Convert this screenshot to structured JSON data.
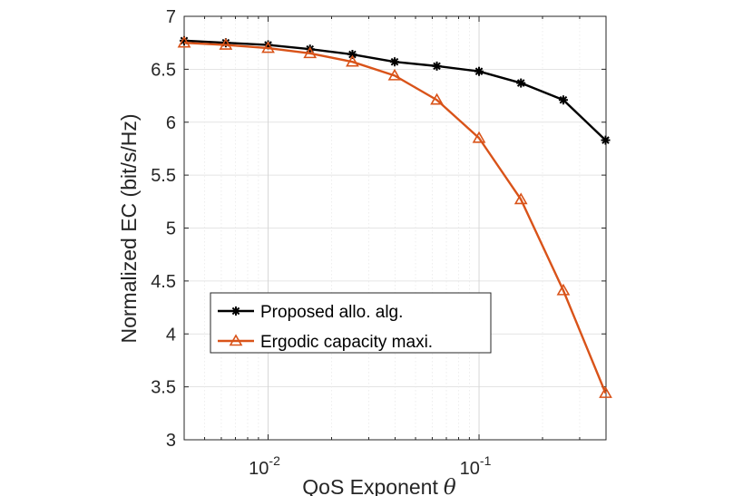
{
  "chart_data": {
    "type": "line",
    "title": "",
    "xlabel": "QoS Exponent",
    "xlabel_symbol": "θ",
    "ylabel": "Normalized EC (bit/s/Hz)",
    "xscale": "log",
    "xlim": [
      0.004,
      0.4
    ],
    "ylim": [
      3,
      7
    ],
    "grid": true,
    "legend_location": "lower-left",
    "y_ticks": [
      "3",
      "3.5",
      "4",
      "4.5",
      "5",
      "5.5",
      "6",
      "6.5",
      "7"
    ],
    "y_tick_values": [
      3,
      3.5,
      4,
      4.5,
      5,
      5.5,
      6,
      6.5,
      7
    ],
    "x_ticks": [
      {
        "base": "10",
        "exp": "-2",
        "value": 0.01
      },
      {
        "base": "10",
        "exp": "-1",
        "value": 0.1
      }
    ],
    "x": [
      0.004,
      0.0063,
      0.01,
      0.0158,
      0.0251,
      0.0398,
      0.0631,
      0.1,
      0.158,
      0.251,
      0.398
    ],
    "series": [
      {
        "name": "Proposed allo. alg.",
        "color": "#000000",
        "marker": "asterisk",
        "values": [
          6.77,
          6.75,
          6.73,
          6.69,
          6.64,
          6.57,
          6.53,
          6.48,
          6.37,
          6.21,
          5.83
        ]
      },
      {
        "name": "Ergodic capacity maxi.",
        "color": "#D95319",
        "marker": "triangle",
        "values": [
          6.75,
          6.73,
          6.7,
          6.65,
          6.57,
          6.44,
          6.21,
          5.85,
          5.27,
          4.41,
          3.44
        ]
      }
    ]
  }
}
